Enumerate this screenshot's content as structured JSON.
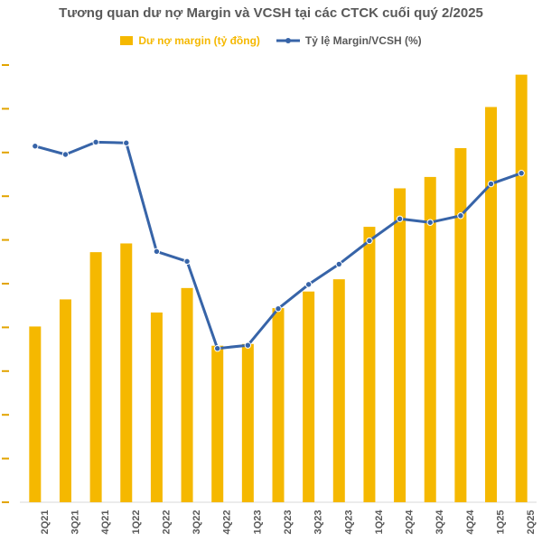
{
  "chart_data": {
    "type": "bar",
    "title": "Tương quan dư nợ Margin và VCSH tại các CTCK cuối quý 2/2025",
    "categories": [
      "2Q21",
      "3Q21",
      "4Q21",
      "1Q22",
      "2Q22",
      "3Q22",
      "4Q22",
      "1Q23",
      "2Q23",
      "3Q23",
      "4Q23",
      "1Q24",
      "2Q24",
      "3Q24",
      "4Q24",
      "1Q25",
      "2Q25"
    ],
    "series": [
      {
        "name": "Dư nợ margin (tỷ đồng)",
        "type": "bar",
        "color": "#F5B800",
        "values": [
          201,
          232,
          286,
          296,
          217,
          245,
          179,
          181,
          222,
          241,
          255,
          315,
          359,
          372,
          405,
          452,
          489
        ]
      },
      {
        "name": "Tỷ lệ Margin/VCSH (%)",
        "type": "line",
        "color": "#3764A8",
        "values": [
          89.6,
          87.5,
          90.6,
          90.4,
          63.1,
          60.6,
          38.7,
          39.5,
          48.7,
          54.8,
          59.9,
          65.8,
          71.3,
          70.4,
          72.1,
          80.1,
          82.8
        ]
      }
    ],
    "ylim": [
      0,
      500
    ],
    "y2lim": [
      0,
      110
    ],
    "grid": false,
    "legend_position": "top"
  }
}
